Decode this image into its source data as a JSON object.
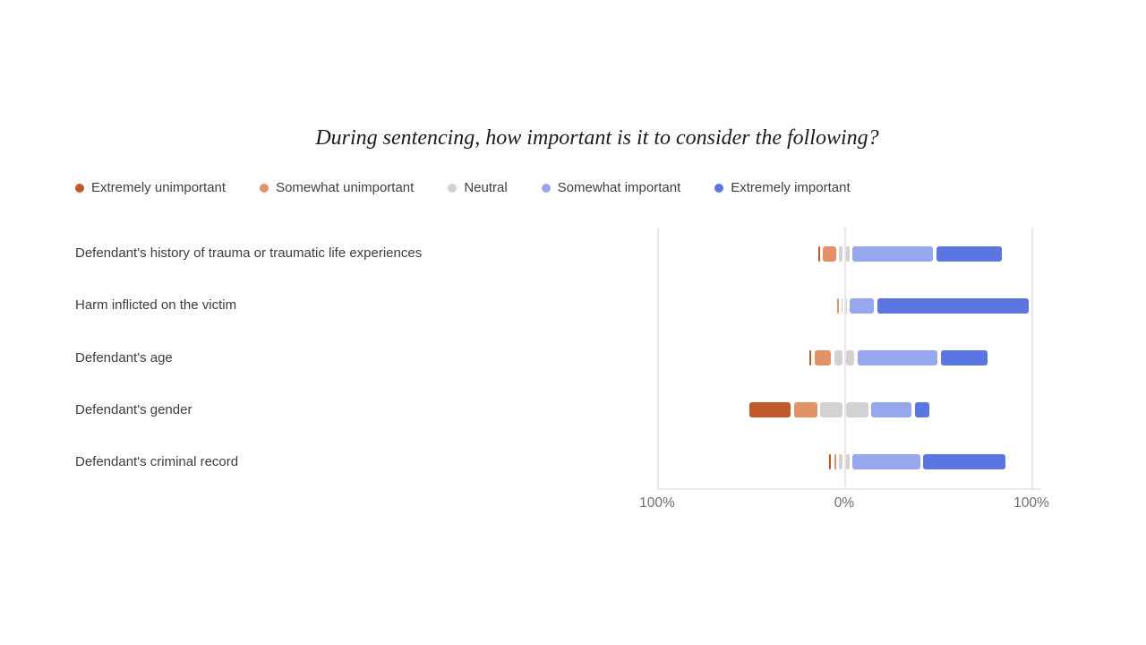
{
  "chart_data": {
    "type": "bar",
    "variant": "diverging-stacked-likert",
    "title": "During sentencing, how important is it to consider the following?",
    "units": "percent of respondents",
    "legend_position": "top-left",
    "categories": [
      "Defendant's history of trauma or traumatic life experiences",
      "Harm inflicted on the victim",
      "Defendant's age",
      "Defendant's gender",
      "Defendant's criminal record"
    ],
    "series": [
      {
        "name": "Extremely unimportant",
        "color": "#C2592B",
        "values": [
          1,
          0,
          1,
          22,
          1
        ]
      },
      {
        "name": "Somewhat unimportant",
        "color": "#E39267",
        "values": [
          7,
          1,
          9,
          12.5,
          1
        ]
      },
      {
        "name": "Neutral",
        "color": "#D3D1D1",
        "values": [
          4,
          1,
          9,
          24,
          4
        ]
      },
      {
        "name": "Somewhat important",
        "color": "#97A7EC",
        "values": [
          43,
          13,
          43,
          21.5,
          36
        ]
      },
      {
        "name": "Extremely important",
        "color": "#5B76E0",
        "values": [
          35,
          81,
          25,
          8,
          44
        ]
      }
    ],
    "x_axis": {
      "range": [
        -100,
        100
      ],
      "ticks": [
        {
          "value": -100,
          "label": "100%"
        },
        {
          "value": 0,
          "label": "0%"
        },
        {
          "value": 100,
          "label": "100%"
        }
      ],
      "note": "diverging axis; neutral is split evenly across 0%"
    },
    "grid": "vertical lines at 0% and +100%, left and bottom plot borders"
  }
}
